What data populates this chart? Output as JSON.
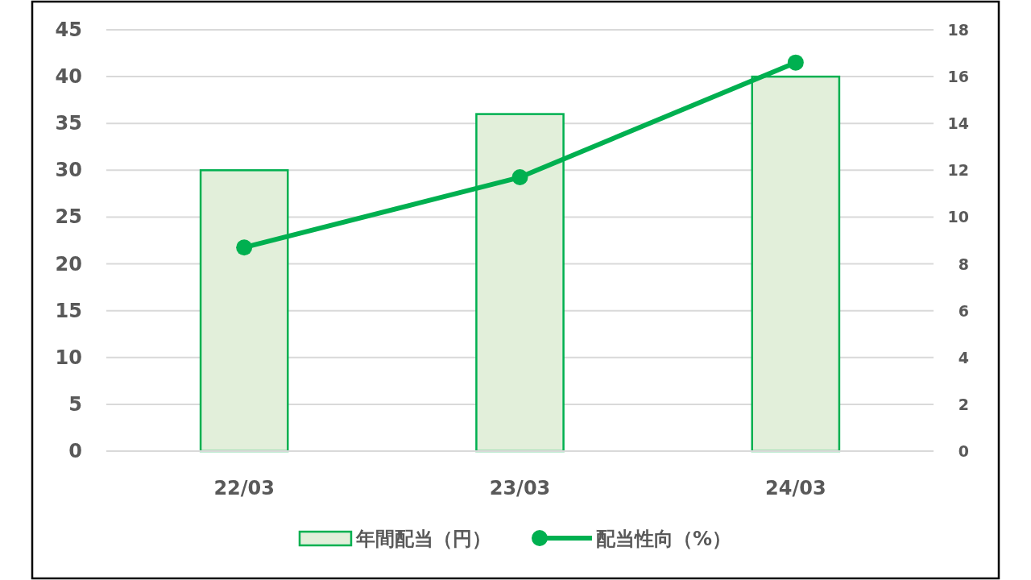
{
  "chart_data": {
    "type": "bar",
    "categories": [
      "22/03",
      "23/03",
      "24/03"
    ],
    "series": [
      {
        "name": "年間配当（円）",
        "type": "bar",
        "color": "#e2efda",
        "values": [
          30,
          36,
          40
        ]
      },
      {
        "name": "配当性向（%）",
        "type": "line",
        "axis": "y2",
        "color": "#00b050",
        "values": [
          8.7,
          11.7,
          16.6
        ]
      }
    ],
    "ylim": [
      0,
      45
    ],
    "yticks": [
      0,
      5,
      10,
      15,
      20,
      25,
      30,
      35,
      40,
      45
    ],
    "y2lim": [
      0,
      18
    ],
    "y2ticks": [
      0,
      2,
      4,
      6,
      8,
      10,
      12,
      14,
      16,
      18
    ],
    "grid": "y",
    "legend": "bottom",
    "marker": "circle",
    "line_style": "solid"
  }
}
